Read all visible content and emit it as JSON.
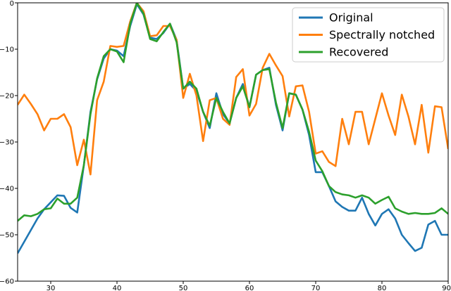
{
  "chart_data": {
    "type": "line",
    "title": "",
    "xlabel": "",
    "ylabel": "",
    "xlim": [
      25,
      90
    ],
    "ylim": [
      -60,
      0
    ],
    "xticks": [
      30,
      40,
      50,
      60,
      70,
      80,
      90
    ],
    "yticks": [
      0,
      -10,
      -20,
      -30,
      -40,
      -50,
      -60
    ],
    "grid": false,
    "legend_placement": "top-right",
    "x": [
      25,
      26,
      27,
      28,
      29,
      30,
      31,
      32,
      33,
      34,
      35,
      36,
      37,
      38,
      39,
      40,
      41,
      42,
      43,
      44,
      45,
      46,
      47,
      48,
      49,
      50,
      51,
      52,
      53,
      54,
      55,
      56,
      57,
      58,
      59,
      60,
      61,
      62,
      63,
      64,
      65,
      66,
      67,
      68,
      69,
      70,
      71,
      72,
      73,
      74,
      75,
      76,
      77,
      78,
      79,
      80,
      81,
      82,
      83,
      84,
      85,
      86,
      87,
      88,
      89,
      90
    ],
    "series": [
      {
        "name": "Original",
        "color": "#1f77b4",
        "values": [
          -54.0,
          -51.5,
          -49.0,
          -46.5,
          -44.5,
          -43.0,
          -41.5,
          -41.6,
          -44.2,
          -45.2,
          -35.0,
          -23.5,
          -16.5,
          -12.0,
          -10.0,
          -10.3,
          -11.5,
          -5.0,
          -0.3,
          -2.5,
          -7.5,
          -7.8,
          -6.5,
          -4.5,
          -8.0,
          -18.5,
          -17.5,
          -19.0,
          -23.5,
          -27.0,
          -19.5,
          -24.0,
          -26.0,
          -20.5,
          -17.5,
          -22.5,
          -15.5,
          -14.5,
          -14.0,
          -22.0,
          -27.5,
          -19.5,
          -19.8,
          -23.0,
          -28.5,
          -36.5,
          -36.5,
          -39.5,
          -42.8,
          -44.0,
          -44.8,
          -44.8,
          -42.0,
          -45.5,
          -48.0,
          -45.5,
          -44.5,
          -46.5,
          -50.0,
          -51.8,
          -53.5,
          -52.8,
          -47.8,
          -47.0,
          -50.0,
          -50.0
        ]
      },
      {
        "name": "Spectrally notched",
        "color": "#ff7f0e",
        "values": [
          -22.0,
          -19.8,
          -21.8,
          -24.0,
          -27.5,
          -25.0,
          -25.0,
          -24.0,
          -26.8,
          -35.0,
          -29.5,
          -37.0,
          -21.0,
          -17.0,
          -9.3,
          -9.5,
          -9.3,
          -4.0,
          0.0,
          -1.8,
          -7.2,
          -7.0,
          -5.0,
          -5.0,
          -8.0,
          -20.5,
          -15.3,
          -20.0,
          -29.8,
          -21.0,
          -20.5,
          -25.0,
          -26.3,
          -16.0,
          -14.3,
          -24.3,
          -21.8,
          -14.0,
          -11.0,
          -13.5,
          -15.8,
          -24.5,
          -18.0,
          -17.8,
          -23.5,
          -32.5,
          -32.0,
          -34.3,
          -35.2,
          -25.0,
          -30.5,
          -23.5,
          -23.5,
          -30.5,
          -25.0,
          -19.5,
          -24.3,
          -28.5,
          -19.8,
          -24.5,
          -30.5,
          -22.0,
          -32.3,
          -22.3,
          -22.5,
          -31.5
        ]
      },
      {
        "name": "Recovered",
        "color": "#2ca02c",
        "values": [
          -47.0,
          -45.8,
          -46.0,
          -45.5,
          -44.5,
          -44.3,
          -42.2,
          -43.3,
          -43.3,
          -42.0,
          -35.0,
          -24.0,
          -16.3,
          -11.5,
          -10.0,
          -10.5,
          -12.8,
          -4.5,
          0.0,
          -2.3,
          -7.8,
          -8.3,
          -6.3,
          -4.5,
          -8.5,
          -18.5,
          -17.0,
          -18.5,
          -23.5,
          -26.5,
          -20.5,
          -23.5,
          -26.0,
          -20.5,
          -18.0,
          -22.5,
          -15.5,
          -14.5,
          -14.3,
          -21.5,
          -27.0,
          -19.5,
          -19.8,
          -23.0,
          -27.8,
          -34.0,
          -36.3,
          -39.5,
          -40.8,
          -41.3,
          -41.5,
          -42.0,
          -41.5,
          -42.0,
          -43.3,
          -42.5,
          -41.8,
          -44.3,
          -45.0,
          -45.5,
          -45.3,
          -45.5,
          -45.5,
          -45.3,
          -44.3,
          -45.5
        ]
      }
    ]
  }
}
